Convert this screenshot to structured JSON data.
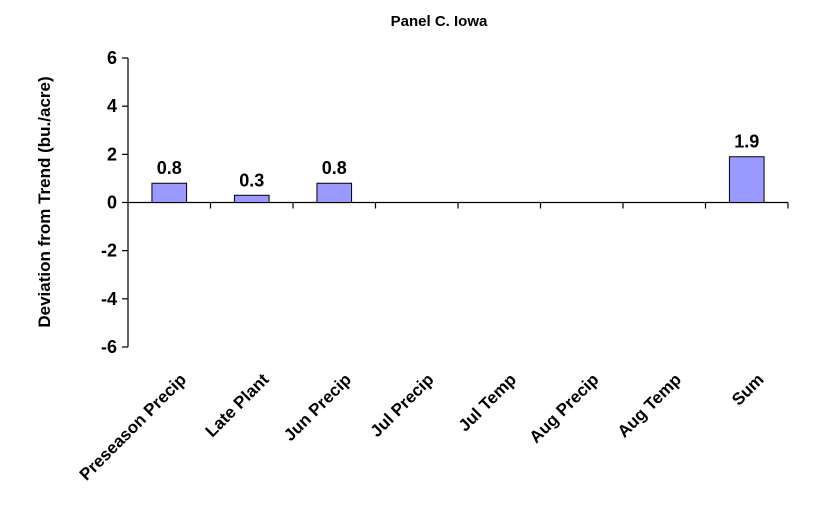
{
  "chart_data": {
    "type": "bar",
    "title": "Panel C. Iowa",
    "ylabel": "Deviation from Trend (bu./acre)",
    "xlabel": "",
    "categories": [
      "Preseason Precip",
      "Late Plant",
      "Jun Precip",
      "Jul Precip",
      "Jul Temp",
      "Aug Precip",
      "Aug Temp",
      "Sum"
    ],
    "values": [
      0.8,
      0.3,
      0.8,
      0,
      0,
      0,
      0,
      1.9
    ],
    "data_labels": [
      "0.8",
      "0.3",
      "0.8",
      "",
      "",
      "",
      "",
      "1.9"
    ],
    "ylim": [
      -6,
      6
    ],
    "yticks": [
      6,
      4,
      2,
      0,
      -2,
      -4,
      -6
    ],
    "bar_color": "#9999ff",
    "grid": false,
    "legend": "none"
  }
}
